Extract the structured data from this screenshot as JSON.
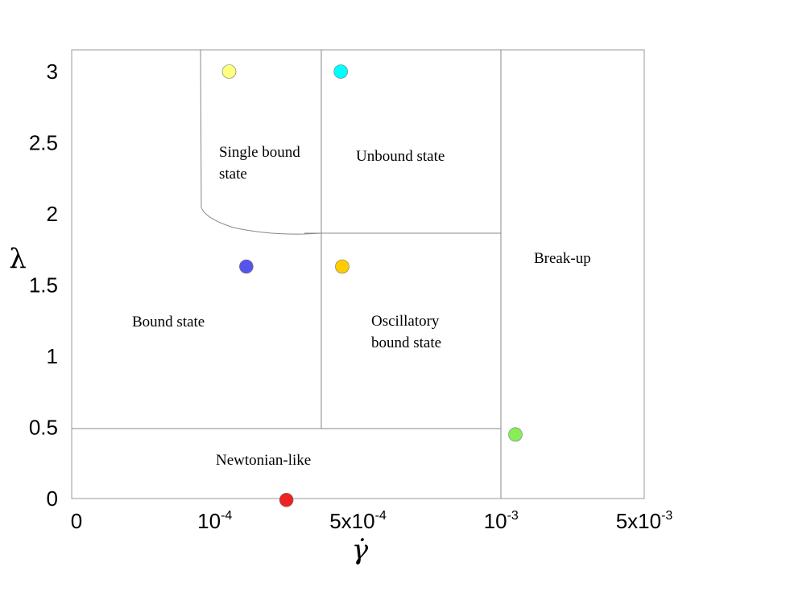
{
  "chart_data": {
    "type": "scatter",
    "title": "",
    "xlabel": "γ̇",
    "ylabel": "λ",
    "x_ticks": [
      {
        "base": "0",
        "exp": ""
      },
      {
        "base": "10",
        "exp": "-4"
      },
      {
        "base": "5x10",
        "exp": "-4"
      },
      {
        "base": "10",
        "exp": "-3"
      },
      {
        "base": "5x10",
        "exp": "-3"
      }
    ],
    "y_ticks": [
      "0",
      "0.5",
      "1",
      "1.5",
      "2",
      "2.5",
      "3"
    ],
    "y_values_ticks": [
      0,
      0.5,
      1,
      1.5,
      2,
      2.5,
      3
    ],
    "ylim": [
      0,
      3.15
    ],
    "grid": false,
    "regions": [
      {
        "lines": [
          "Single bound",
          "state"
        ]
      },
      {
        "lines": [
          "Unbound state"
        ]
      },
      {
        "lines": [
          "Break-up"
        ]
      },
      {
        "lines": [
          "Bound state"
        ]
      },
      {
        "lines": [
          "Oscillatory",
          "bound state"
        ]
      },
      {
        "lines": [
          "Newtonian-like"
        ]
      }
    ],
    "points": [
      {
        "x_tick_pos": 1.1,
        "y": 3.0,
        "color": "#ffff80"
      },
      {
        "x_tick_pos": 1.88,
        "y": 3.0,
        "color": "#00ffff"
      },
      {
        "x_tick_pos": 1.22,
        "y": 1.63,
        "color": "#5555ee"
      },
      {
        "x_tick_pos": 1.89,
        "y": 1.63,
        "color": "#ffcc00"
      },
      {
        "x_tick_pos": 1.5,
        "y": -0.01,
        "color": "#ee2222"
      },
      {
        "x_tick_pos": 3.1,
        "y": 0.45,
        "color": "#88ee55"
      }
    ]
  }
}
